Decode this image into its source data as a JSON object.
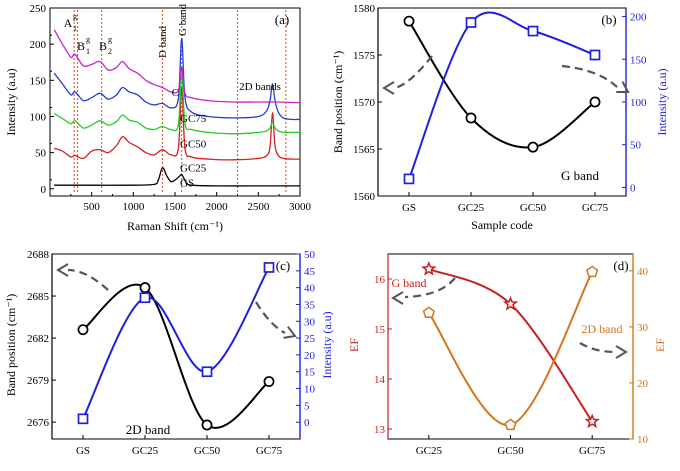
{
  "chart_data": [
    {
      "panel": "(a)",
      "type": "line",
      "xlabel": "Raman Shift (cm⁻¹)",
      "ylabel": "Intensity (a.u)",
      "xlim": [
        0,
        3000
      ],
      "ylim": [
        -10,
        250
      ],
      "xticks": [
        "500",
        "1000",
        "1500",
        "2000",
        "2500",
        "3000"
      ],
      "yticks": [
        "0",
        "50",
        "100",
        "150",
        "200",
        "250"
      ],
      "peak_labels": [
        "A",
        "1",
        "g",
        "B",
        "1",
        "g",
        "B",
        "2",
        "g",
        "D band",
        "G band",
        "2D bands"
      ],
      "peak_lines_x": [
        290,
        330,
        620,
        1350,
        1580,
        2250,
        2830
      ],
      "series": [
        {
          "name": "GS",
          "color": "#000000",
          "x": [
            50,
            500,
            1000,
            1250,
            1300,
            1350,
            1400,
            1450,
            1500,
            1560,
            1580,
            1600,
            1640,
            1700,
            2000,
            2500,
            2700,
            3000
          ],
          "y": [
            5,
            5,
            5,
            6,
            12,
            29,
            18,
            10,
            12,
            18,
            20,
            16,
            8,
            5,
            4,
            4,
            4,
            4
          ]
        },
        {
          "name": "GC25",
          "color": "#d42020",
          "x": [
            50,
            150,
            250,
            300,
            400,
            500,
            600,
            700,
            800,
            870,
            950,
            1050,
            1150,
            1250,
            1350,
            1450,
            1540,
            1580,
            1620,
            1700,
            1900,
            2200,
            2500,
            2600,
            2640,
            2670,
            2700,
            2740,
            2800,
            2900,
            3000
          ],
          "y": [
            56,
            52,
            44,
            46,
            42,
            52,
            54,
            50,
            60,
            72,
            64,
            58,
            50,
            47,
            54,
            47,
            55,
            140,
            56,
            44,
            41,
            40,
            42,
            46,
            58,
            105,
            60,
            46,
            42,
            41,
            41
          ]
        },
        {
          "name": "GC50",
          "color": "#22cc22",
          "x": [
            50,
            150,
            250,
            300,
            400,
            500,
            600,
            700,
            800,
            870,
            950,
            1050,
            1150,
            1250,
            1350,
            1450,
            1540,
            1580,
            1620,
            1700,
            1900,
            2200,
            2500,
            2600,
            2640,
            2670,
            2700,
            2740,
            2800,
            2900,
            3000
          ],
          "y": [
            104,
            97,
            90,
            94,
            84,
            88,
            94,
            88,
            93,
            102,
            95,
            92,
            84,
            82,
            86,
            82,
            88,
            160,
            90,
            82,
            78,
            76,
            78,
            80,
            84,
            92,
            84,
            80,
            78,
            78,
            78
          ]
        },
        {
          "name": "GC75",
          "color": "#1f3fd0",
          "x": [
            50,
            150,
            250,
            300,
            400,
            500,
            600,
            700,
            800,
            870,
            950,
            1050,
            1150,
            1250,
            1350,
            1450,
            1540,
            1580,
            1620,
            1700,
            1900,
            2200,
            2500,
            2600,
            2640,
            2670,
            2700,
            2740,
            2800,
            2900,
            3000
          ],
          "y": [
            160,
            145,
            130,
            134,
            122,
            126,
            132,
            124,
            130,
            140,
            134,
            130,
            120,
            116,
            118,
            112,
            124,
            208,
            126,
            106,
            100,
            98,
            100,
            108,
            122,
            145,
            122,
            106,
            98,
            96,
            96
          ]
        },
        {
          "name": "C",
          "color": "#cc22cc",
          "x": [
            50,
            150,
            250,
            300,
            400,
            500,
            600,
            700,
            800,
            870,
            950,
            1050,
            1150,
            1250,
            1350,
            1450,
            1540,
            1580,
            1620,
            1700,
            1900,
            2200,
            2500,
            2700,
            3000
          ],
          "y": [
            220,
            200,
            182,
            186,
            170,
            172,
            176,
            164,
            168,
            176,
            166,
            160,
            150,
            144,
            140,
            134,
            136,
            168,
            132,
            126,
            122,
            120,
            120,
            120,
            119
          ]
        }
      ],
      "label_items": [
        {
          "text": "C",
          "x": 1460,
          "y": 128
        },
        {
          "text": "GC75",
          "x": 1560,
          "y": 92
        },
        {
          "text": "GC50",
          "x": 1560,
          "y": 57
        },
        {
          "text": "GC25",
          "x": 1560,
          "y": 24
        },
        {
          "text": "GS",
          "x": 1560,
          "y": 3
        }
      ]
    },
    {
      "panel": "(b)",
      "type": "line",
      "xlabel": "Sample code",
      "ylabel": "Band position (cm⁻¹)",
      "ylabel_right": "Intensity (a.u)",
      "categories": [
        "GS",
        "GC25",
        "GC50",
        "GC75"
      ],
      "ylim": [
        1560,
        1580
      ],
      "ylim_right": [
        -10,
        210
      ],
      "yticks": [
        "1560",
        "1565",
        "1570",
        "1575",
        "1580"
      ],
      "yticks_right": [
        "0",
        "50",
        "100",
        "150",
        "200"
      ],
      "annotation": "G band",
      "series": [
        {
          "name": "Band position",
          "axis": "left",
          "marker": "circle",
          "color": "#000000",
          "values": [
            1578.6,
            1568.3,
            1565.2,
            1570.0
          ]
        },
        {
          "name": "Intensity",
          "axis": "right",
          "marker": "square",
          "color": "#1f1fdc",
          "values": [
            10,
            193,
            183,
            155
          ]
        }
      ]
    },
    {
      "panel": "(c)",
      "type": "line",
      "ylabel": "Band position (cm⁻¹)",
      "ylabel_right": "Intensity (a.u)",
      "categories": [
        "GS",
        "GC25",
        "GC50",
        "GC75"
      ],
      "ylim": [
        2674.8,
        2688
      ],
      "ylim_right": [
        -5,
        50
      ],
      "yticks": [
        "2676",
        "2679",
        "2682",
        "2685",
        "2688"
      ],
      "yticks_right": [
        "0",
        "5",
        "10",
        "15",
        "20",
        "25",
        "30",
        "35",
        "40",
        "45",
        "50"
      ],
      "annotation": "2D band",
      "series": [
        {
          "name": "Band position",
          "axis": "left",
          "marker": "circle",
          "color": "#000000",
          "values": [
            2682.6,
            2685.6,
            2675.8,
            2678.9
          ]
        },
        {
          "name": "Intensity",
          "axis": "right",
          "marker": "square",
          "color": "#1f1fdc",
          "values": [
            1,
            37,
            15,
            46
          ]
        }
      ]
    },
    {
      "panel": "(d)",
      "type": "line",
      "ylabel": "EF",
      "ylabel_right": "EF",
      "categories": [
        "GC25",
        "GC50",
        "GC75"
      ],
      "ylim": [
        12.8,
        16.5
      ],
      "ylim_right": [
        10,
        43
      ],
      "yticks": [
        "13",
        "14",
        "15",
        "16"
      ],
      "yticks_right": [
        "10",
        "20",
        "30",
        "40"
      ],
      "annotations": [
        "G band",
        "2D band"
      ],
      "series": [
        {
          "name": "G band",
          "axis": "left",
          "marker": "star",
          "color": "#c62020",
          "values": [
            16.2,
            15.5,
            13.15
          ]
        },
        {
          "name": "2D band",
          "axis": "right",
          "marker": "pentagon",
          "color": "#d8741a",
          "values": [
            32.5,
            12.5,
            39.8
          ]
        }
      ]
    }
  ]
}
